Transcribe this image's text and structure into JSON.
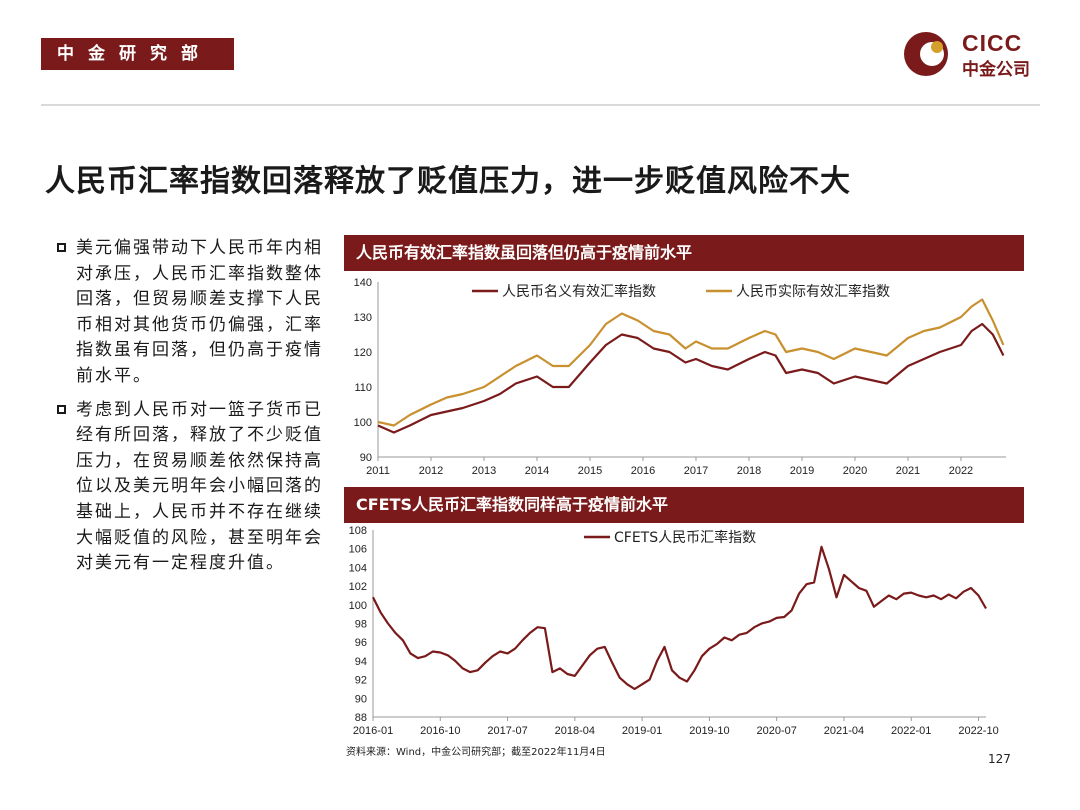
{
  "header": {
    "department": "中金研究部",
    "logo_en": "CICC",
    "logo_zh": "中金公司"
  },
  "slide": {
    "title": "人民币汇率指数回落释放了贬值压力，进一步贬值风险不大"
  },
  "bullets": [
    "美元偏强带动下人民币年内相对承压，人民币汇率指数整体回落，但贸易顺差支撑下人民币相对其他货币仍偏强，汇率指数虽有回落，但仍高于疫情前水平。",
    "考虑到人民币对一篮子货币已经有所回落，释放了不少贬值压力，在贸易顺差依然保持高位以及美元明年会小幅回落的基础上，人民币并不存在继续大幅贬值的风险，甚至明年会对美元有一定程度升值。"
  ],
  "footer": {
    "source": "资料来源：Wind，中金公司研究部；截至2022年11月4日",
    "page": "127"
  },
  "colors": {
    "brand": "#7a1a1a",
    "nominal": "#7a1a1a",
    "real": "#c8902e"
  },
  "chart_data": [
    {
      "type": "line",
      "title": "人民币有效汇率指数虽回落但仍高于疫情前水平",
      "ylim": [
        90,
        140
      ],
      "xlim": [
        2011.0,
        2022.85
      ],
      "yticks": [
        90,
        100,
        110,
        120,
        130,
        140
      ],
      "xticks": [
        2011,
        2012,
        2013,
        2014,
        2015,
        2016,
        2017,
        2018,
        2019,
        2020,
        2021,
        2022
      ],
      "xtick_labels": [
        "2011",
        "2012",
        "2013",
        "2014",
        "2015",
        "2016",
        "2017",
        "2018",
        "2019",
        "2020",
        "2021",
        "2022"
      ],
      "legend_position": "top",
      "series": [
        {
          "name": "人民币名义有效汇率指数",
          "color": "#7a1a1a",
          "x": [
            2011.0,
            2011.3,
            2011.6,
            2012.0,
            2012.3,
            2012.6,
            2013.0,
            2013.3,
            2013.6,
            2014.0,
            2014.3,
            2014.6,
            2015.0,
            2015.3,
            2015.6,
            2015.9,
            2016.2,
            2016.5,
            2016.8,
            2017.0,
            2017.3,
            2017.6,
            2018.0,
            2018.3,
            2018.5,
            2018.7,
            2019.0,
            2019.3,
            2019.6,
            2020.0,
            2020.3,
            2020.6,
            2021.0,
            2021.3,
            2021.6,
            2022.0,
            2022.2,
            2022.4,
            2022.6,
            2022.8
          ],
          "y": [
            99,
            97,
            99,
            102,
            103,
            104,
            106,
            108,
            111,
            113,
            110,
            110,
            117,
            122,
            125,
            124,
            121,
            120,
            117,
            118,
            116,
            115,
            118,
            120,
            119,
            114,
            115,
            114,
            111,
            113,
            112,
            111,
            116,
            118,
            120,
            122,
            126,
            128,
            125,
            119
          ]
        },
        {
          "name": "人民币实际有效汇率指数",
          "color": "#c8902e",
          "x": [
            2011.0,
            2011.3,
            2011.6,
            2012.0,
            2012.3,
            2012.6,
            2013.0,
            2013.3,
            2013.6,
            2014.0,
            2014.3,
            2014.6,
            2015.0,
            2015.3,
            2015.6,
            2015.9,
            2016.2,
            2016.5,
            2016.8,
            2017.0,
            2017.3,
            2017.6,
            2018.0,
            2018.3,
            2018.5,
            2018.7,
            2019.0,
            2019.3,
            2019.6,
            2020.0,
            2020.3,
            2020.6,
            2021.0,
            2021.3,
            2021.6,
            2022.0,
            2022.2,
            2022.4,
            2022.6,
            2022.8
          ],
          "y": [
            100,
            99,
            102,
            105,
            107,
            108,
            110,
            113,
            116,
            119,
            116,
            116,
            122,
            128,
            131,
            129,
            126,
            125,
            121,
            123,
            121,
            121,
            124,
            126,
            125,
            120,
            121,
            120,
            118,
            121,
            120,
            119,
            124,
            126,
            127,
            130,
            133,
            135,
            129,
            122
          ]
        }
      ]
    },
    {
      "type": "line",
      "title": "CFETS人民币汇率指数同样高于疫情前水平",
      "ylim": [
        88,
        108
      ],
      "xlim": [
        0,
        82
      ],
      "yticks": [
        88,
        90,
        92,
        94,
        96,
        98,
        100,
        102,
        104,
        106,
        108
      ],
      "xticks": [
        0,
        9,
        18,
        27,
        36,
        45,
        54,
        63,
        72,
        81
      ],
      "xtick_labels": [
        "2016-01",
        "2016-10",
        "2017-07",
        "2018-04",
        "2019-01",
        "2019-10",
        "2020-07",
        "2021-04",
        "2022-01",
        "2022-10"
      ],
      "legend_position": "top",
      "series": [
        {
          "name": "CFETS人民币汇率指数",
          "color": "#7a1a1a",
          "x": [
            0,
            1,
            2,
            3,
            4,
            5,
            6,
            7,
            8,
            9,
            10,
            11,
            12,
            13,
            14,
            15,
            16,
            17,
            18,
            19,
            20,
            21,
            22,
            23,
            24,
            25,
            26,
            27,
            28,
            29,
            30,
            31,
            32,
            33,
            34,
            35,
            36,
            37,
            38,
            39,
            40,
            41,
            42,
            43,
            44,
            45,
            46,
            47,
            48,
            49,
            50,
            51,
            52,
            53,
            54,
            55,
            56,
            57,
            58,
            59,
            60,
            61,
            62,
            63,
            64,
            65,
            66,
            67,
            68,
            69,
            70,
            71,
            72,
            73,
            74,
            75,
            76,
            77,
            78,
            79,
            80,
            81,
            82
          ],
          "y": [
            100.8,
            99.2,
            98.0,
            97.0,
            96.2,
            94.8,
            94.3,
            94.5,
            95.0,
            94.9,
            94.6,
            94.0,
            93.2,
            92.8,
            93.0,
            93.8,
            94.5,
            95.0,
            94.8,
            95.3,
            96.2,
            97.0,
            97.6,
            97.5,
            92.8,
            93.2,
            92.6,
            92.4,
            93.5,
            94.6,
            95.3,
            95.5,
            93.8,
            92.2,
            91.5,
            91.0,
            91.5,
            92.0,
            94.0,
            95.5,
            93.0,
            92.2,
            91.8,
            93.0,
            94.5,
            95.3,
            95.8,
            96.5,
            96.2,
            96.8,
            97.0,
            97.6,
            98.0,
            98.2,
            98.6,
            98.7,
            99.4,
            101.2,
            102.2,
            102.4,
            106.2,
            103.8,
            100.8,
            103.2,
            102.5,
            101.8,
            101.5,
            99.8,
            100.4,
            101.0,
            100.6,
            101.2,
            101.3,
            101.0,
            100.8,
            101.0,
            100.6,
            101.1,
            100.7,
            101.4,
            101.8,
            101.0,
            99.6
          ]
        }
      ]
    }
  ]
}
